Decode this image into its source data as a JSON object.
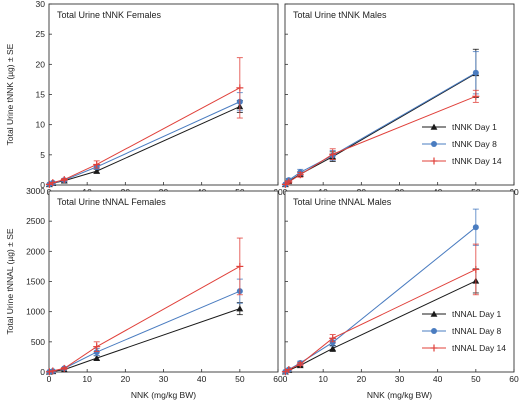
{
  "chart_data": [
    {
      "type": "line",
      "title": "Total Urine tNNK Females",
      "ylabel": "Total Urine tNNK (µg) ± SE",
      "xlabel": "",
      "xlim": [
        0,
        60
      ],
      "ylim": [
        0,
        30
      ],
      "xticks": [
        "0",
        "10",
        "20",
        "30",
        "40",
        "50",
        "60"
      ],
      "yticks": [
        "0",
        "5",
        "10",
        "15",
        "20",
        "25",
        "30"
      ],
      "x": [
        0.1,
        1,
        4,
        12.5,
        50
      ],
      "legend": "none",
      "series": [
        {
          "name": "tNNK Day 1",
          "color": "#1a1a1a",
          "marker": "triangle",
          "values": [
            0.1,
            0.3,
            0.7,
            2.3,
            13.0
          ],
          "errors": [
            0.05,
            0.1,
            0.2,
            0.3,
            1.0
          ]
        },
        {
          "name": "tNNK Day 8",
          "color": "#4a7cc0",
          "marker": "circle",
          "values": [
            0.1,
            0.35,
            0.8,
            3.0,
            13.8
          ],
          "errors": [
            0.05,
            0.1,
            0.2,
            0.4,
            1.5
          ]
        },
        {
          "name": "tNNK Day 14",
          "color": "#e0403a",
          "marker": "plus",
          "values": [
            0.1,
            0.4,
            0.9,
            3.4,
            16.1
          ],
          "errors": [
            0.05,
            0.1,
            0.2,
            0.6,
            5.0
          ]
        }
      ]
    },
    {
      "type": "line",
      "title": "Total Urine tNNK Males",
      "ylabel": "",
      "xlabel": "",
      "xlim": [
        0,
        60
      ],
      "ylim": [
        0,
        30
      ],
      "xticks": [
        "0",
        "10",
        "20",
        "30",
        "40",
        "50",
        "60"
      ],
      "yticks": [],
      "x": [
        0.1,
        1,
        4,
        12.5,
        50
      ],
      "legend": "bottom-right",
      "series": [
        {
          "name": "tNNK Day 1",
          "color": "#1a1a1a",
          "marker": "triangle",
          "values": [
            0.1,
            0.6,
            1.8,
            4.7,
            18.5
          ],
          "errors": [
            0.05,
            0.2,
            0.4,
            0.8,
            4.0
          ]
        },
        {
          "name": "tNNK Day 8",
          "color": "#4a7cc0",
          "marker": "circle",
          "values": [
            0.1,
            0.8,
            2.1,
            4.9,
            18.6
          ],
          "errors": [
            0.05,
            0.3,
            0.5,
            0.8,
            3.5
          ]
        },
        {
          "name": "tNNK Day 14",
          "color": "#e0403a",
          "marker": "plus",
          "values": [
            0.1,
            0.5,
            1.7,
            5.1,
            14.7
          ],
          "errors": [
            0.05,
            0.2,
            0.4,
            0.9,
            1.0
          ]
        }
      ]
    },
    {
      "type": "line",
      "title": "Total Urine tNNAL Females",
      "ylabel": "Total Urine tNNAL (µg) ± SE",
      "xlabel": "NNK (mg/kg BW)",
      "xlim": [
        0,
        60
      ],
      "ylim": [
        0,
        3000
      ],
      "xticks": [
        "0",
        "10",
        "20",
        "30",
        "40",
        "50",
        "60"
      ],
      "yticks": [
        "0",
        "500",
        "1000",
        "1500",
        "2000",
        "2500",
        "3000"
      ],
      "x": [
        0.1,
        1,
        4,
        12.5,
        50
      ],
      "legend": "none",
      "series": [
        {
          "name": "tNNAL Day 1",
          "color": "#1a1a1a",
          "marker": "triangle",
          "values": [
            2,
            10,
            40,
            230,
            1050
          ],
          "errors": [
            1,
            5,
            10,
            40,
            100
          ]
        },
        {
          "name": "tNNAL Day 8",
          "color": "#4a7cc0",
          "marker": "circle",
          "values": [
            3,
            15,
            60,
            330,
            1340
          ],
          "errors": [
            1,
            5,
            15,
            60,
            200
          ]
        },
        {
          "name": "tNNAL Day 14",
          "color": "#e0403a",
          "marker": "plus",
          "values": [
            3,
            18,
            60,
            420,
            1750
          ],
          "errors": [
            1,
            6,
            15,
            80,
            470
          ]
        }
      ]
    },
    {
      "type": "line",
      "title": "Total Urine tNNAL Males",
      "ylabel": "",
      "xlabel": "NNK (mg/kg BW)",
      "xlim": [
        0,
        60
      ],
      "ylim": [
        0,
        3000
      ],
      "xticks": [
        "0",
        "10",
        "20",
        "30",
        "40",
        "50",
        "60"
      ],
      "yticks": [],
      "x": [
        0.1,
        1,
        4,
        12.5,
        50
      ],
      "legend": "bottom-right",
      "series": [
        {
          "name": "tNNAL Day 1",
          "color": "#1a1a1a",
          "marker": "triangle",
          "values": [
            3,
            30,
            110,
            390,
            1510
          ],
          "errors": [
            1,
            8,
            20,
            50,
            200
          ]
        },
        {
          "name": "tNNAL Day 8",
          "color": "#4a7cc0",
          "marker": "circle",
          "values": [
            4,
            40,
            150,
            490,
            2400
          ],
          "errors": [
            1,
            10,
            30,
            60,
            300
          ]
        },
        {
          "name": "tNNAL Day 14",
          "color": "#e0403a",
          "marker": "plus",
          "values": [
            4,
            40,
            130,
            560,
            1700
          ],
          "errors": [
            1,
            10,
            25,
            60,
            420
          ]
        }
      ]
    }
  ]
}
